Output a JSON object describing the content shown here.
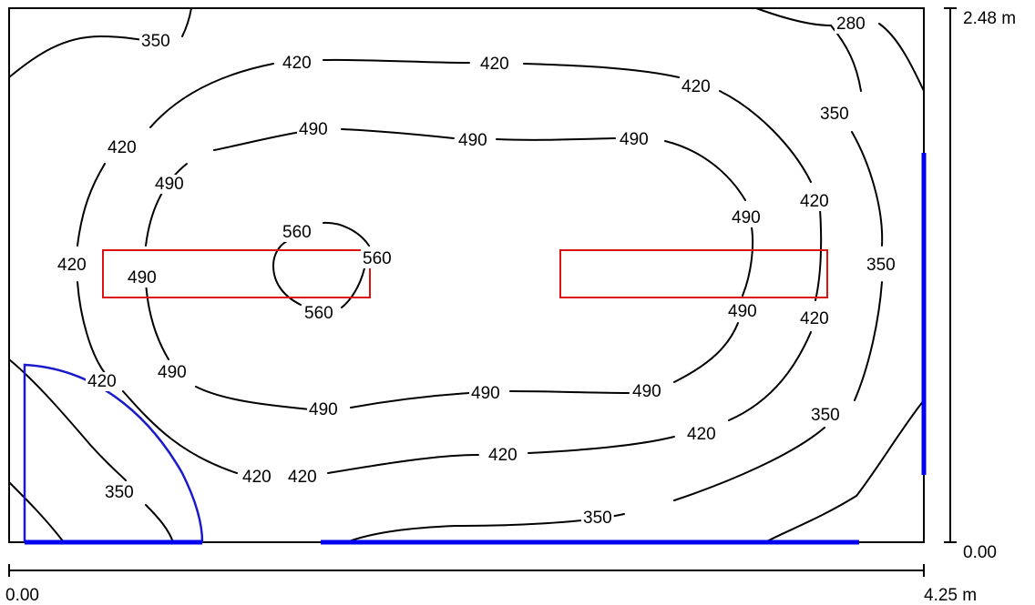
{
  "colors": {
    "contour": "#000000",
    "room": "#000000",
    "luminaire": "#dd1111",
    "window": "#0000ee",
    "door": "#1a1acc"
  },
  "dimensions": {
    "y_top": "2.48 m",
    "y_bottom": "0.00",
    "x_left": "0.00",
    "x_right": "4.25 m"
  },
  "isoline_labels": {
    "l280": "280",
    "l350_a": "350",
    "l350_b": "350",
    "l350_c": "350",
    "l350_d": "350",
    "l350_e": "350",
    "l350_f": "350",
    "l420_a": "420",
    "l420_b": "420",
    "l420_c": "420",
    "l420_d": "420",
    "l420_e": "420",
    "l420_f": "420",
    "l420_g": "420",
    "l420_h": "420",
    "l420_i": "420",
    "l420_j": "420",
    "l420_k": "420",
    "l420_l": "420",
    "l490_a": "490",
    "l490_b": "490",
    "l490_c": "490",
    "l490_d": "490",
    "l490_e": "490",
    "l490_f": "490",
    "l490_g": "490",
    "l490_h": "490",
    "l490_i": "490",
    "l490_j": "490",
    "l490_k": "490",
    "l560_a": "560",
    "l560_b": "560",
    "l560_c": "560"
  }
}
